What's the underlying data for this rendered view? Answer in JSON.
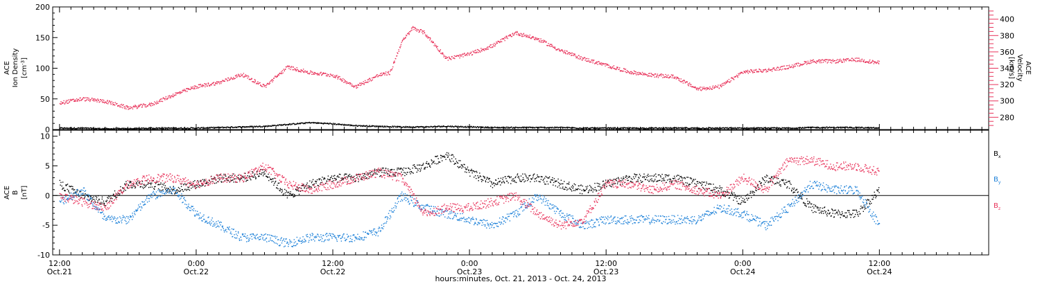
{
  "colors": {
    "black": "#000000",
    "red": "#e8325a",
    "blue": "#1a7fd8"
  },
  "chart_data": [
    {
      "type": "scatter",
      "panel": "top",
      "left_axis": {
        "label_lines": [
          "ACE",
          "Ion Density"
        ],
        "unit_base": "[cm",
        "unit_sup": "-3",
        "unit_close": "]",
        "ylim": [
          0,
          200
        ],
        "ticks": [
          0,
          50,
          100,
          150,
          200
        ],
        "tick_labels": [
          "0",
          "50",
          "100",
          "150",
          "200"
        ]
      },
      "right_axis": {
        "label_lines": [
          "ACE",
          "Velocity",
          "[km/s]"
        ],
        "ylim": [
          265,
          415
        ],
        "ticks": [
          280,
          300,
          320,
          340,
          360,
          380,
          400
        ],
        "tick_labels": [
          "280",
          "300",
          "320",
          "340",
          "360",
          "380",
          "400"
        ],
        "color": "#e8325a"
      },
      "series": [
        {
          "color": "#000000",
          "axis": "left",
          "x": [
            0,
            2,
            4,
            6,
            8,
            10,
            12,
            14,
            16,
            18,
            20,
            22,
            24,
            26,
            28,
            30,
            32,
            34,
            36,
            38,
            40,
            42,
            44,
            46,
            48,
            50,
            52,
            54,
            56,
            58,
            60,
            62,
            64,
            66,
            68,
            70,
            72
          ],
          "y": [
            3,
            3,
            2,
            2,
            3,
            3,
            3,
            4,
            5,
            6,
            9,
            12,
            10,
            7,
            6,
            5,
            5,
            6,
            5,
            4,
            4,
            4,
            4,
            3,
            3,
            3,
            3,
            3,
            3,
            3,
            3,
            3,
            3,
            4,
            4,
            4,
            3
          ]
        },
        {
          "color": "#e8325a",
          "axis": "right",
          "x": [
            0,
            2,
            4,
            6,
            8,
            10,
            12,
            14,
            16,
            18,
            20,
            22,
            24,
            26,
            28,
            29,
            30,
            31,
            32,
            33,
            34,
            36,
            38,
            40,
            42,
            44,
            46,
            48,
            50,
            52,
            54,
            56,
            58,
            60,
            62,
            64,
            66,
            68,
            70,
            72
          ],
          "y": [
            298,
            303,
            300,
            292,
            296,
            308,
            318,
            323,
            333,
            318,
            342,
            335,
            332,
            318,
            332,
            335,
            372,
            390,
            384,
            368,
            352,
            358,
            368,
            384,
            376,
            362,
            352,
            344,
            336,
            332,
            330,
            315,
            318,
            336,
            338,
            342,
            349,
            349,
            351,
            347
          ]
        }
      ]
    },
    {
      "type": "scatter",
      "panel": "bottom",
      "left_axis": {
        "label_lines": [
          "ACE",
          "B",
          "[nT]"
        ],
        "ylim": [
          -10,
          11
        ],
        "ticks": [
          -10,
          -5,
          0,
          5,
          10
        ],
        "tick_labels": [
          "-10",
          "-5",
          "0",
          "5",
          "10"
        ]
      },
      "legend": [
        {
          "base": "B",
          "sub": "x",
          "color": "#000000"
        },
        {
          "base": "B",
          "sub": "y",
          "color": "#1a7fd8"
        },
        {
          "base": "B",
          "sub": "z",
          "color": "#e8325a"
        }
      ],
      "zero_line": true,
      "series": [
        {
          "name": "Bx",
          "color": "#000000",
          "x": [
            0,
            2,
            4,
            6,
            8,
            10,
            12,
            14,
            16,
            18,
            20,
            22,
            24,
            26,
            28,
            30,
            32,
            34,
            36,
            38,
            40,
            42,
            44,
            46,
            48,
            50,
            52,
            54,
            56,
            58,
            60,
            62,
            64,
            66,
            68,
            70,
            72
          ],
          "y": [
            2,
            0,
            -1,
            2,
            2,
            1,
            2,
            3,
            3,
            4,
            0,
            2,
            3,
            3,
            4,
            4,
            5,
            7,
            4,
            2,
            3,
            3,
            2,
            1,
            2,
            3,
            3,
            3,
            2,
            1,
            -1,
            3,
            2,
            -2,
            -3,
            -3,
            1
          ]
        },
        {
          "name": "By",
          "color": "#1a7fd8",
          "x": [
            0,
            2,
            4,
            6,
            8,
            10,
            12,
            14,
            16,
            18,
            20,
            22,
            24,
            26,
            28,
            30,
            32,
            34,
            36,
            38,
            40,
            42,
            44,
            46,
            48,
            50,
            52,
            54,
            56,
            58,
            60,
            62,
            64,
            66,
            68,
            70,
            72
          ],
          "y": [
            -1,
            1,
            -4,
            -4,
            0,
            1,
            -3,
            -5,
            -7,
            -7,
            -8,
            -7,
            -7,
            -7,
            -6,
            0,
            -2,
            -3,
            -4,
            -5,
            -3,
            0,
            -3,
            -5,
            -4,
            -4,
            -4,
            -4,
            -4,
            -2,
            -3,
            -5,
            -2,
            2,
            1,
            1,
            -5
          ]
        },
        {
          "name": "Bz",
          "color": "#e8325a",
          "x": [
            0,
            2,
            4,
            6,
            8,
            10,
            12,
            14,
            16,
            18,
            20,
            22,
            24,
            26,
            28,
            30,
            32,
            34,
            36,
            38,
            40,
            42,
            44,
            46,
            48,
            50,
            52,
            54,
            56,
            58,
            60,
            62,
            64,
            66,
            68,
            70,
            72
          ],
          "y": [
            0,
            -1,
            -2,
            2,
            3,
            3,
            2,
            3,
            3,
            5,
            2,
            1,
            2,
            3,
            4,
            3,
            -3,
            -2,
            -2,
            -1,
            0,
            -3,
            -5,
            -4,
            2,
            2,
            1,
            2,
            1,
            0,
            3,
            1,
            6,
            6,
            5,
            5,
            4
          ]
        }
      ]
    }
  ],
  "x_axis": {
    "range_hours": [
      -0.6,
      81.6
    ],
    "ticks": [
      {
        "hour": 0,
        "time": "12:00",
        "date": "Oct.21"
      },
      {
        "hour": 12,
        "time": "0:00",
        "date": "Oct.22"
      },
      {
        "hour": 24,
        "time": "12:00",
        "date": "Oct.22"
      },
      {
        "hour": 36,
        "time": "0:00",
        "date": "Oct.23"
      },
      {
        "hour": 48,
        "time": "12:00",
        "date": "Oct.23"
      },
      {
        "hour": 60,
        "time": "0:00",
        "date": "Oct.24"
      },
      {
        "hour": 72,
        "time": "12:00",
        "date": "Oct.24"
      }
    ],
    "minor_step_hours": 1,
    "title": "hours:minutes, Oct. 21, 2013 - Oct. 24, 2013"
  }
}
